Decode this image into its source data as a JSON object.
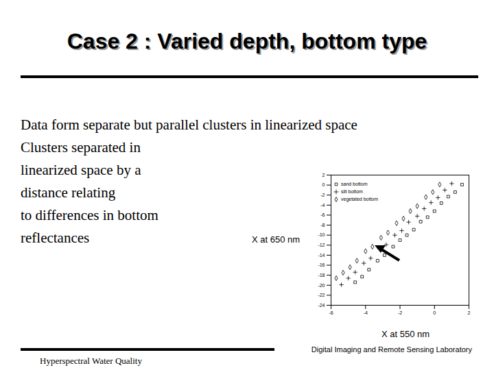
{
  "slide": {
    "title": "Case 2 : Varied depth, bottom type",
    "body": [
      "Data form separate but parallel clusters in linearized space",
      "Clusters separated in",
      "linearized space by a",
      "distance relating",
      "to differences in bottom",
      "reflectances"
    ],
    "footer_left": "Hyperspectral Water Quality",
    "footer_right": "Digital Imaging and Remote Sensing Laboratory"
  },
  "chart_data": {
    "type": "scatter",
    "x_label": "X at 550 nm",
    "y_label": "X at 650 nm",
    "xlim": [
      -6,
      2
    ],
    "xticks": [
      -6,
      -4,
      -2,
      0,
      2
    ],
    "ylim": [
      -24,
      2
    ],
    "yticks": [
      -24,
      -22,
      -20,
      -18,
      -16,
      -14,
      -12,
      -10,
      -8,
      -6,
      -4,
      -2,
      0,
      2
    ],
    "legend": "top-left",
    "series": [
      {
        "name": "sand bottom",
        "color": "#000000",
        "marker": "square",
        "x": [
          -4.6,
          -4.2,
          -3.8,
          -3.3,
          -2.9,
          -2.4,
          -2.0,
          -1.6,
          -1.2,
          -0.8,
          -0.4,
          0.0,
          0.4,
          0.8,
          1.2,
          1.6
        ],
        "values": [
          -19.4,
          -18.3,
          -16.9,
          -15.1,
          -14.0,
          -12.3,
          -11.0,
          -10.0,
          -8.9,
          -7.3,
          -6.4,
          -5.2,
          -3.6,
          -2.3,
          -1.4,
          0.1
        ]
      },
      {
        "name": "silt bottom",
        "color": "#000000",
        "marker": "plus",
        "x": [
          -5.4,
          -5.0,
          -4.6,
          -4.1,
          -3.7,
          -3.2,
          -2.8,
          -2.3,
          -1.9,
          -1.5,
          -1.0,
          -0.6,
          -0.2,
          0.2,
          0.6,
          1.0
        ],
        "values": [
          -19.9,
          -18.6,
          -17.4,
          -15.6,
          -14.6,
          -12.7,
          -11.9,
          -10.0,
          -9.1,
          -7.4,
          -6.2,
          -4.7,
          -3.5,
          -2.5,
          -1.0,
          0.3
        ]
      },
      {
        "name": "vegetated bottom",
        "color": "#000000",
        "marker": "diamond",
        "x": [
          -5.7,
          -5.3,
          -4.9,
          -4.5,
          -4.0,
          -3.6,
          -3.1,
          -2.7,
          -2.2,
          -1.8,
          -1.4,
          -1.0,
          -0.5,
          -0.1,
          0.3
        ],
        "values": [
          -18.6,
          -17.5,
          -16.4,
          -15.1,
          -13.2,
          -12.3,
          -10.5,
          -9.5,
          -7.6,
          -6.7,
          -5.2,
          -4.2,
          -2.4,
          -1.4,
          0.1
        ]
      }
    ]
  }
}
